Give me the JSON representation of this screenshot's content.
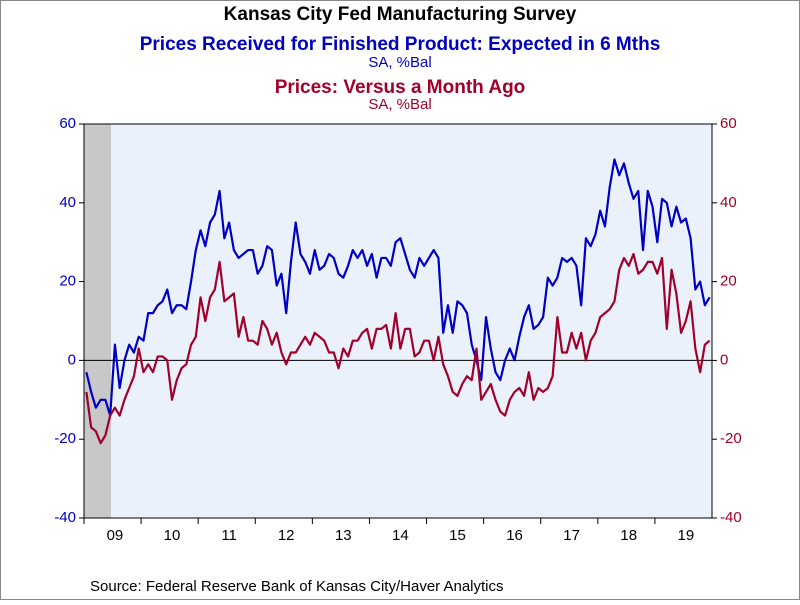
{
  "chart_data": {
    "type": "line",
    "title": "Kansas City Fed Manufacturing Survey",
    "source": "Source:  Federal Reserve Bank of Kansas City/Haver Analytics",
    "categories": [
      null,
      null,
      null,
      null,
      null,
      null,
      "09",
      null,
      null,
      null,
      null,
      null,
      null,
      null,
      null,
      null,
      null,
      null,
      "10",
      null,
      null,
      null,
      null,
      null,
      null,
      null,
      null,
      null,
      null,
      null,
      "11",
      null,
      null,
      null,
      null,
      null,
      null,
      null,
      null,
      null,
      null,
      null,
      "12",
      null,
      null,
      null,
      null,
      null,
      null,
      null,
      null,
      null,
      null,
      null,
      "13",
      null,
      null,
      null,
      null,
      null,
      null,
      null,
      null,
      null,
      null,
      null,
      "14",
      null,
      null,
      null,
      null,
      null,
      null,
      null,
      null,
      null,
      null,
      null,
      "15",
      null,
      null,
      null,
      null,
      null,
      null,
      null,
      null,
      null,
      null,
      null,
      "16",
      null,
      null,
      null,
      null,
      null,
      null,
      null,
      null,
      null,
      null,
      null,
      "17",
      null,
      null,
      null,
      null,
      null,
      null,
      null,
      null,
      null,
      null,
      null,
      "18",
      null,
      null,
      null,
      null,
      null,
      null,
      null,
      null,
      null,
      null,
      null,
      "19",
      null,
      null,
      null,
      null,
      null
    ],
    "series": [
      {
        "name": "Prices Received for Finished Product: Expected in 6 Mths",
        "units": "SA, %Bal",
        "color": "#0000c0",
        "axis": "y",
        "values": [
          -3,
          -8,
          -12,
          -10,
          -10,
          -14,
          4,
          -7,
          0,
          4,
          2,
          6,
          5,
          12,
          12,
          14,
          15,
          18,
          12,
          14,
          14,
          13,
          20,
          28,
          33,
          29,
          35,
          37,
          43,
          31,
          35,
          28,
          26,
          27,
          28,
          28,
          22,
          24,
          29,
          28,
          19,
          22,
          12,
          25,
          35,
          27,
          25,
          22,
          28,
          23,
          24,
          27,
          26,
          22,
          21,
          24,
          28,
          26,
          28,
          24,
          27,
          21,
          26,
          26,
          24,
          30,
          31,
          27,
          23,
          21,
          26,
          24,
          26,
          28,
          26,
          7,
          14,
          7,
          15,
          14,
          12,
          4,
          0,
          -5,
          11,
          3,
          -3,
          -5,
          0,
          3,
          0,
          6,
          11,
          14,
          8,
          9,
          11,
          21,
          19,
          21,
          26,
          25,
          26,
          24,
          14,
          31,
          29,
          32,
          38,
          34,
          44,
          51,
          47,
          50,
          45,
          41,
          43,
          28,
          43,
          39,
          30,
          41,
          40,
          34,
          39,
          35,
          36,
          31,
          18,
          20,
          14,
          16
        ]
      },
      {
        "name": "Prices: Versus a Month Ago",
        "units": "SA, %Bal",
        "color": "#a0002a",
        "axis": "y2",
        "values": [
          -8,
          -17,
          -18,
          -21,
          -19,
          -14,
          -12,
          -14,
          -10,
          -7,
          -4,
          3,
          -3,
          -1,
          -3,
          1,
          1,
          0,
          -10,
          -5,
          -2,
          -1,
          4,
          6,
          16,
          10,
          16,
          18,
          25,
          15,
          16,
          17,
          6,
          11,
          5,
          5,
          4,
          10,
          8,
          4,
          7,
          2,
          -1,
          2,
          2,
          4,
          6,
          4,
          7,
          6,
          5,
          2,
          2,
          -2,
          3,
          1,
          5,
          5,
          7,
          8,
          3,
          8,
          8,
          9,
          3,
          12,
          3,
          8,
          8,
          1,
          2,
          5,
          5,
          0,
          6,
          -1,
          -4,
          -8,
          -9,
          -6,
          -4,
          -5,
          3,
          -10,
          -8,
          -6,
          -10,
          -13,
          -14,
          -10,
          -8,
          -7,
          -9,
          -3,
          -10,
          -7,
          -8,
          -7,
          -4,
          11,
          2,
          2,
          7,
          3,
          7,
          0,
          5,
          7,
          11,
          12,
          13,
          15,
          23,
          26,
          24,
          27,
          22,
          23,
          25,
          25,
          22,
          26,
          8,
          23,
          17,
          7,
          10,
          15,
          3,
          -3,
          4,
          5
        ]
      }
    ],
    "ylim": [
      -40,
      60
    ],
    "yticks": [
      -40,
      -20,
      0,
      20,
      40,
      60
    ],
    "y2lim": [
      -40,
      60
    ],
    "y2ticks": [
      -40,
      -20,
      0,
      20,
      40,
      60
    ]
  }
}
